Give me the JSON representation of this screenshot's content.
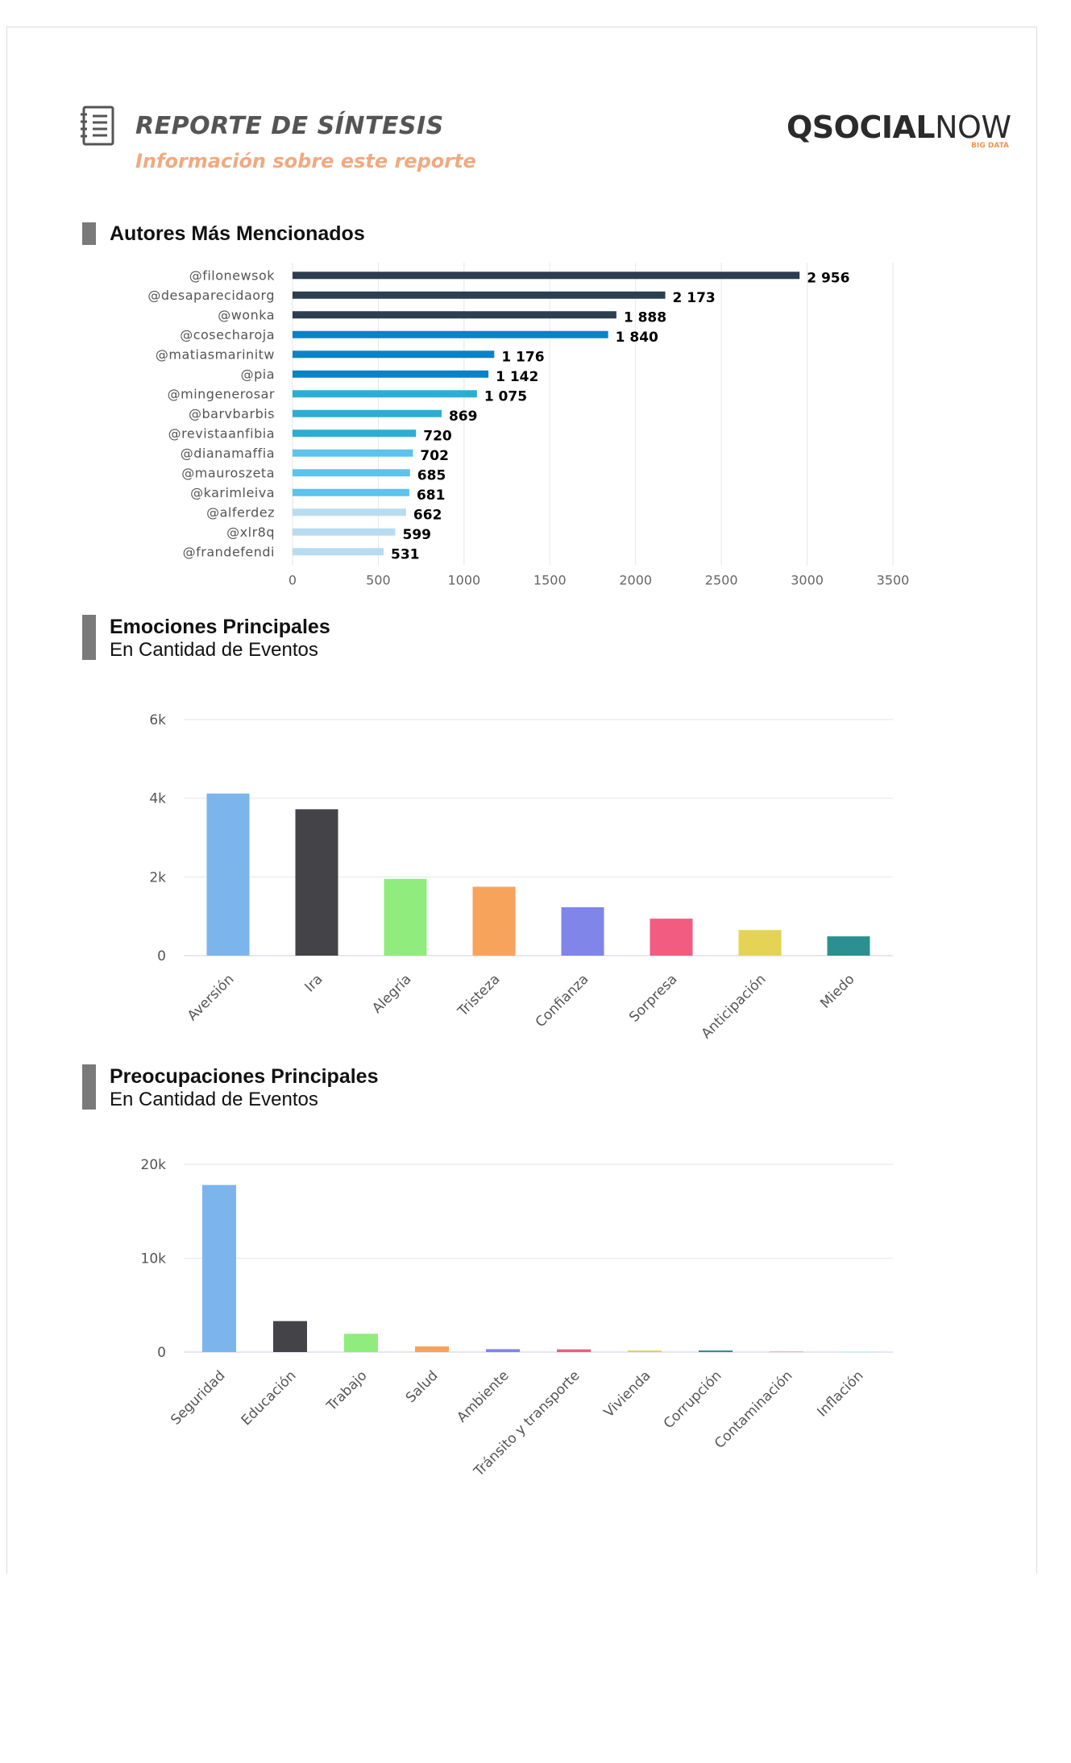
{
  "header": {
    "title": "REPORTE DE SÍNTESIS",
    "subtitle": "Información sobre este reporte",
    "logo_main_bold": "QSOCIAL",
    "logo_main_light": "NOW",
    "logo_tag": "BIG DATA"
  },
  "sections": {
    "authors": {
      "title": "Autores Más Mencionados"
    },
    "emotions": {
      "title": "Emociones Principales",
      "subtitle": "En Cantidad de Eventos"
    },
    "concerns": {
      "title": "Preocupaciones Principales",
      "subtitle": "En Cantidad de Eventos"
    }
  },
  "chart_data": [
    {
      "type": "bar",
      "orientation": "horizontal",
      "categories": [
        "@filonewsok",
        "@desaparecidaorg",
        "@wonka",
        "@cosecharoja",
        "@matiasmarinitw",
        "@pia",
        "@mingenerosar",
        "@barvbarbis",
        "@revistaanfibia",
        "@dianamaffia",
        "@mauroszeta",
        "@karimleiva",
        "@alferdez",
        "@xlr8q",
        "@frandefendi"
      ],
      "values": [
        2956,
        2173,
        1888,
        1840,
        1176,
        1142,
        1075,
        869,
        720,
        702,
        685,
        681,
        662,
        599,
        531
      ],
      "value_labels": [
        "2 956",
        "2 173",
        "1 888",
        "1 840",
        "1 176",
        "1 142",
        "1 075",
        "869",
        "720",
        "702",
        "685",
        "681",
        "662",
        "599",
        "531"
      ],
      "colors": [
        "#2c3e50",
        "#2c3e50",
        "#2c3e50",
        "#0a83c6",
        "#0a83c6",
        "#0a83c6",
        "#2aaed3",
        "#2aaed3",
        "#2aaed3",
        "#5cc3ec",
        "#5cc3ec",
        "#5cc3ec",
        "#b7dcf0",
        "#b7dcf0",
        "#b7dcf0"
      ],
      "xlim": [
        0,
        3500
      ],
      "xticks": [
        0,
        500,
        1000,
        1500,
        2000,
        2500,
        3000,
        3500
      ],
      "grid": true
    },
    {
      "type": "bar",
      "categories": [
        "Aversión",
        "Ira",
        "Alegría",
        "Tristeza",
        "Confianza",
        "Sorpresa",
        "Anticipación",
        "Miedo"
      ],
      "values": [
        4120,
        3720,
        1950,
        1750,
        1230,
        940,
        650,
        490
      ],
      "colors": [
        "#7cb5ec",
        "#434348",
        "#90ed7d",
        "#f7a35c",
        "#8085e9",
        "#f15c80",
        "#e4d354",
        "#2b908f"
      ],
      "ylim": [
        0,
        6000
      ],
      "yticks": [
        0,
        2000,
        4000,
        6000
      ],
      "ytick_labels": [
        "0",
        "2k",
        "4k",
        "6k"
      ],
      "grid": true
    },
    {
      "type": "bar",
      "categories": [
        "Seguridad",
        "Educación",
        "Trabajo",
        "Salud",
        "Ambiente",
        "Tránsito y transporte",
        "Vivienda",
        "Corrupción",
        "Contaminación",
        "Inflación"
      ],
      "values": [
        17800,
        3300,
        1950,
        600,
        310,
        290,
        170,
        170,
        40,
        20
      ],
      "colors": [
        "#7cb5ec",
        "#434348",
        "#90ed7d",
        "#f7a35c",
        "#8085e9",
        "#f15c80",
        "#e4d354",
        "#2b908f",
        "#f45b5b",
        "#91e8e1"
      ],
      "ylim": [
        0,
        20000
      ],
      "yticks": [
        0,
        10000,
        20000
      ],
      "ytick_labels": [
        "0",
        "10k",
        "20k"
      ],
      "grid": true
    }
  ]
}
